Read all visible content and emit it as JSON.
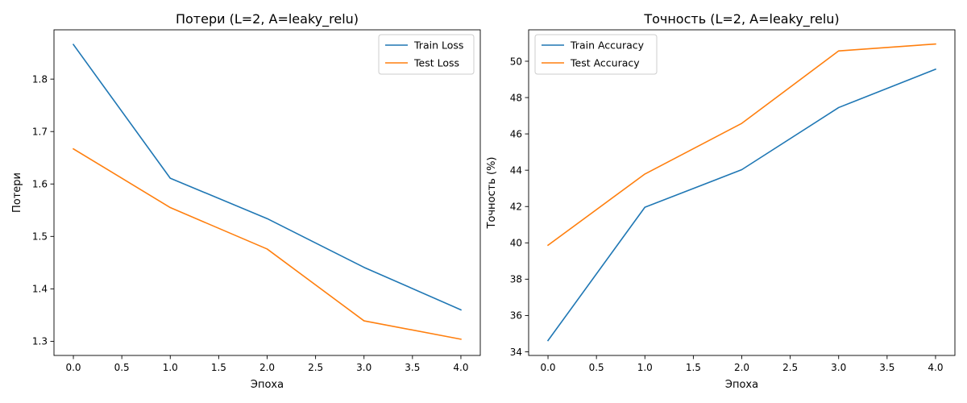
{
  "chart_data": [
    {
      "type": "line",
      "title": "Потери (L=2, A=leaky_relu)",
      "xlabel": "Эпоха",
      "ylabel": "Потери",
      "x": [
        0,
        1,
        2,
        3,
        4
      ],
      "xlim": [
        -0.2,
        4.2
      ],
      "ylim": [
        1.273,
        1.894
      ],
      "xticks": [
        0.0,
        0.5,
        1.0,
        1.5,
        2.0,
        2.5,
        3.0,
        3.5,
        4.0
      ],
      "xtick_labels": [
        "0.0",
        "0.5",
        "1.0",
        "1.5",
        "2.0",
        "2.5",
        "3.0",
        "3.5",
        "4.0"
      ],
      "yticks": [
        1.3,
        1.4,
        1.5,
        1.6,
        1.7,
        1.8
      ],
      "ytick_labels": [
        "1.3",
        "1.4",
        "1.5",
        "1.6",
        "1.7",
        "1.8"
      ],
      "grid": false,
      "legend": "top-right",
      "series": [
        {
          "name": "Train Loss",
          "color": "#1f77b4",
          "values": [
            1.866,
            1.611,
            1.534,
            1.441,
            1.36
          ]
        },
        {
          "name": "Test Loss",
          "color": "#ff7f0e",
          "values": [
            1.667,
            1.555,
            1.476,
            1.339,
            1.304
          ]
        }
      ]
    },
    {
      "type": "line",
      "title": "Точность (L=2, A=leaky_relu)",
      "xlabel": "Эпоха",
      "ylabel": "Точность (%)",
      "x": [
        0,
        1,
        2,
        3,
        4
      ],
      "xlim": [
        -0.2,
        4.2
      ],
      "ylim": [
        33.8,
        51.73
      ],
      "xticks": [
        0.0,
        0.5,
        1.0,
        1.5,
        2.0,
        2.5,
        3.0,
        3.5,
        4.0
      ],
      "xtick_labels": [
        "0.0",
        "0.5",
        "1.0",
        "1.5",
        "2.0",
        "2.5",
        "3.0",
        "3.5",
        "4.0"
      ],
      "yticks": [
        34,
        36,
        38,
        40,
        42,
        44,
        46,
        48,
        50
      ],
      "ytick_labels": [
        "34",
        "36",
        "38",
        "40",
        "42",
        "44",
        "46",
        "48",
        "50"
      ],
      "grid": false,
      "legend": "top-left",
      "series": [
        {
          "name": "Train Accuracy",
          "color": "#1f77b4",
          "values": [
            34.62,
            41.96,
            44.03,
            47.45,
            49.56
          ]
        },
        {
          "name": "Test Accuracy",
          "color": "#ff7f0e",
          "values": [
            39.87,
            43.79,
            46.58,
            50.57,
            50.95
          ]
        }
      ]
    }
  ]
}
